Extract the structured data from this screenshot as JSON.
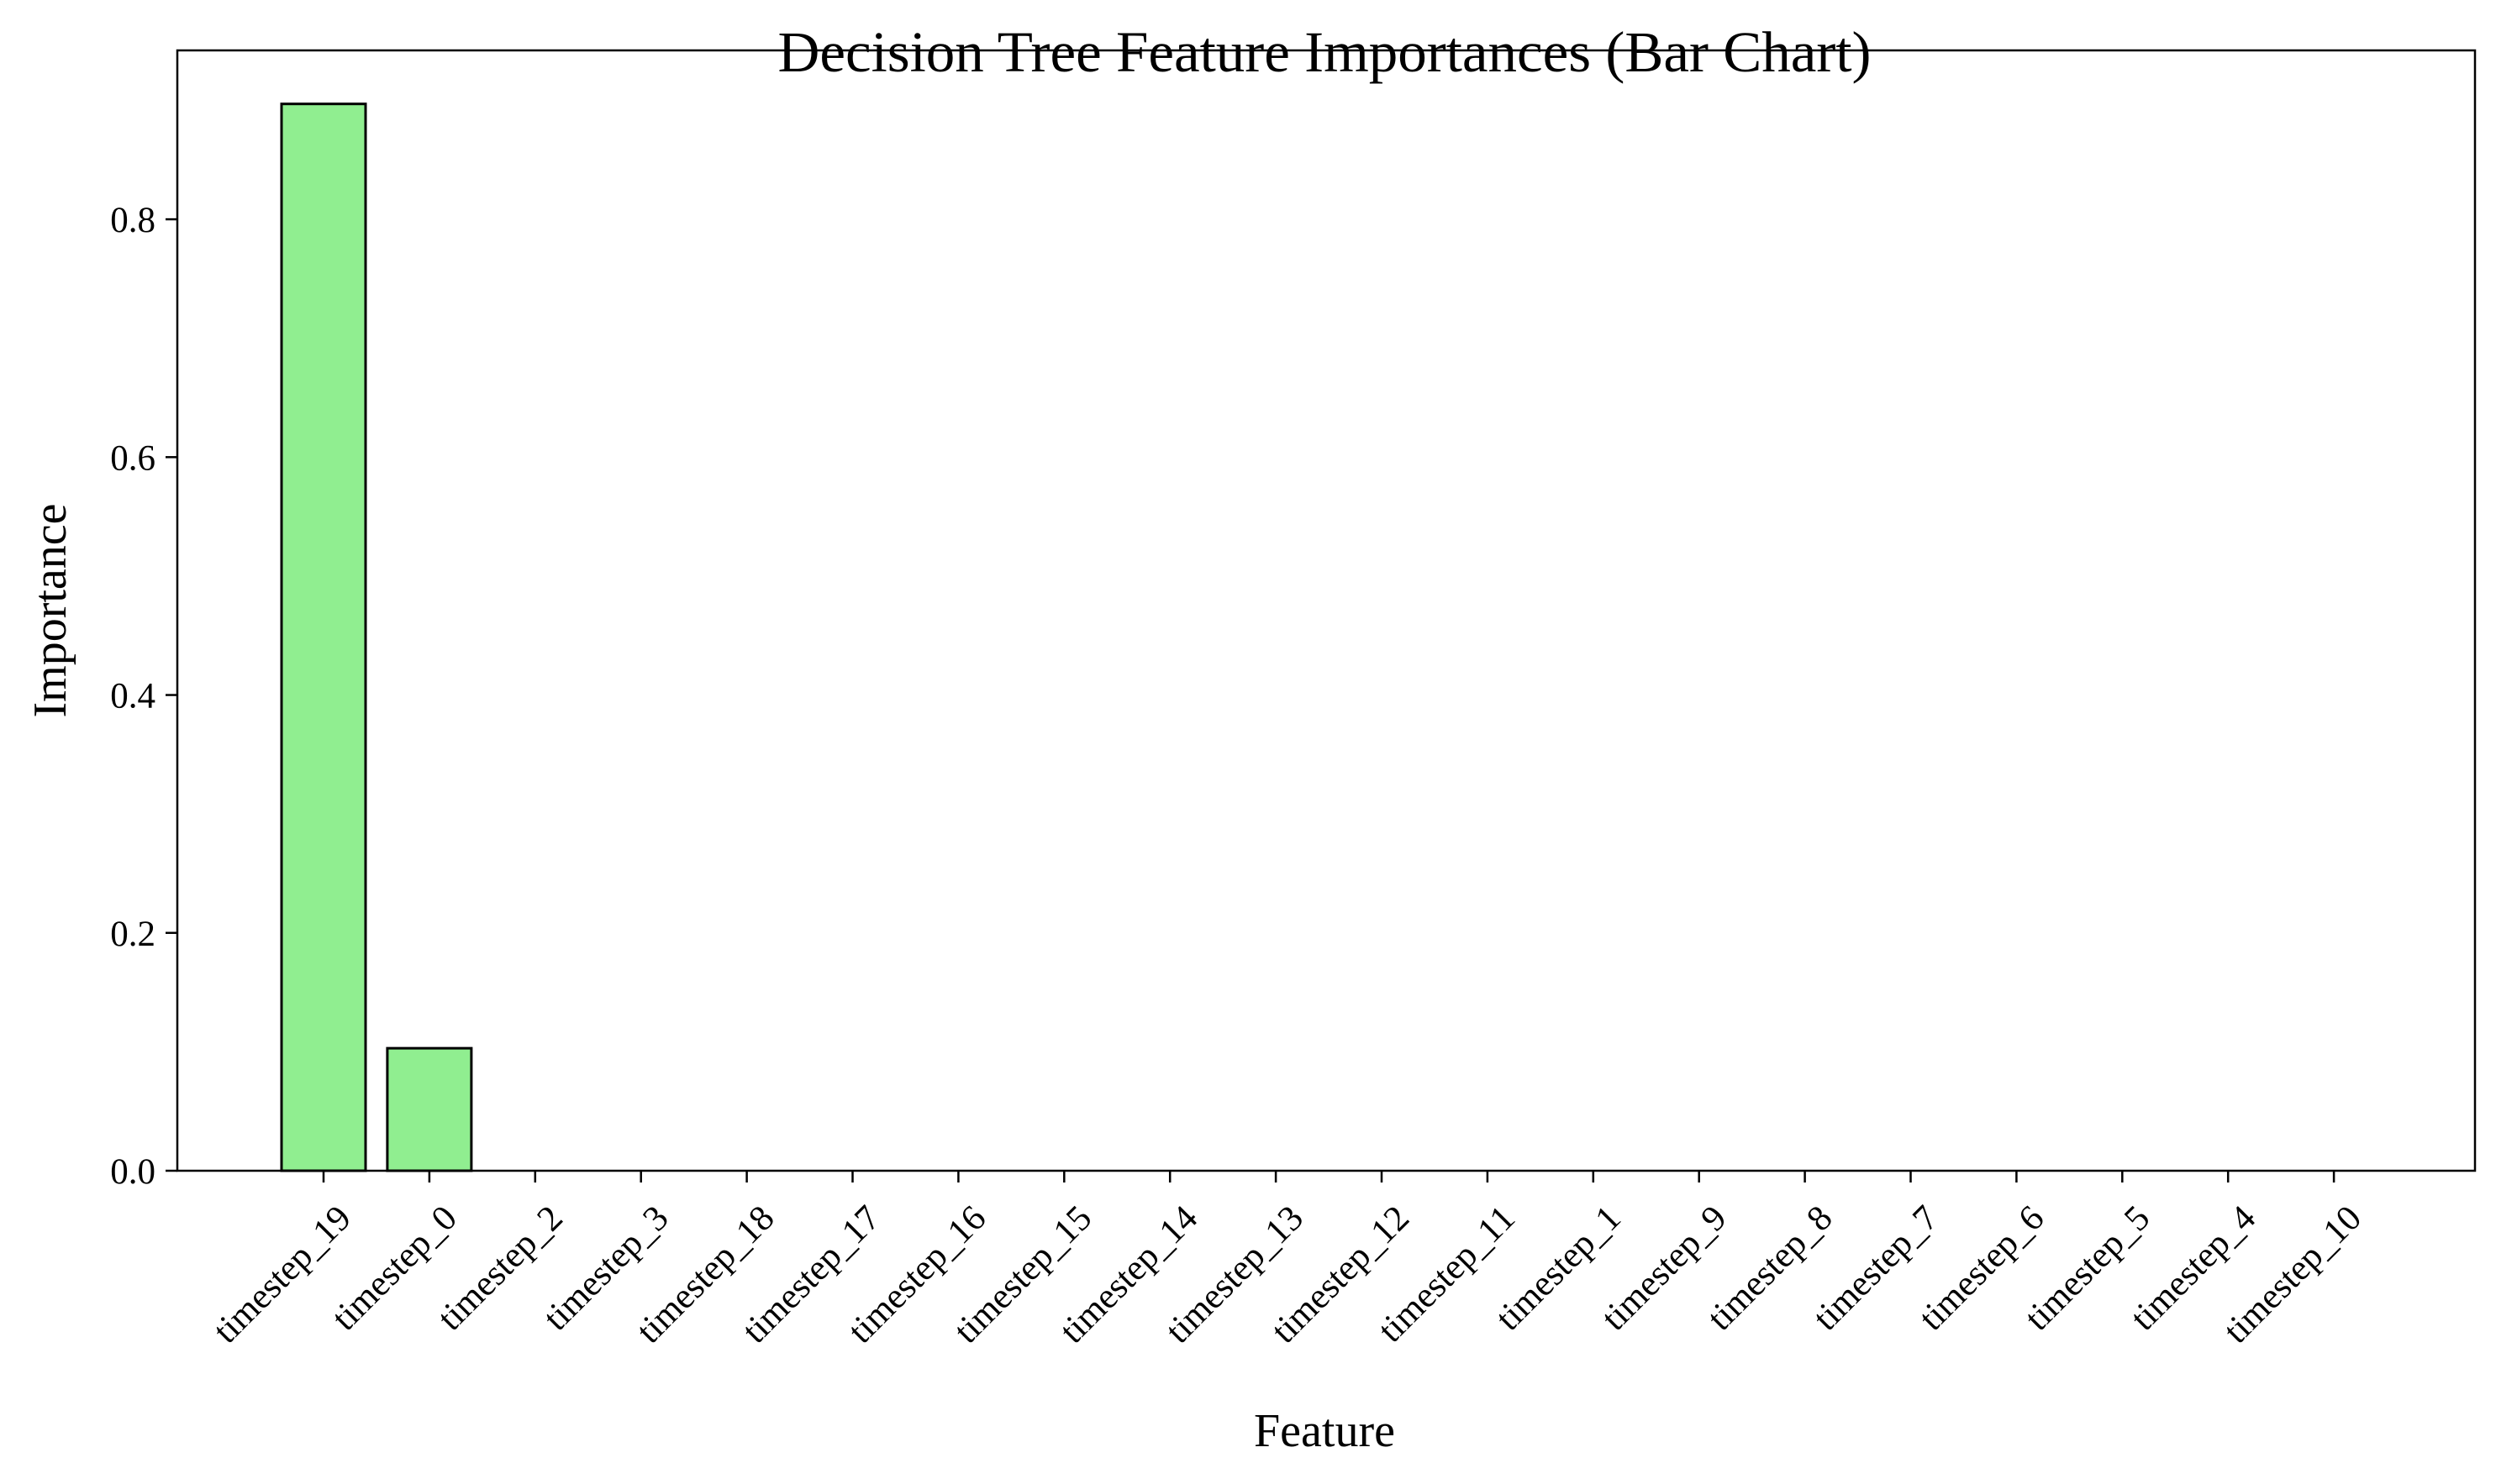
{
  "chart_data": {
    "type": "bar",
    "title": "Decision Tree Feature Importances (Bar Chart)",
    "xlabel": "Feature",
    "ylabel": "Importance",
    "categories": [
      "timestep_19",
      "timestep_0",
      "timestep_2",
      "timestep_3",
      "timestep_18",
      "timestep_17",
      "timestep_16",
      "timestep_15",
      "timestep_14",
      "timestep_13",
      "timestep_12",
      "timestep_11",
      "timestep_1",
      "timestep_9",
      "timestep_8",
      "timestep_7",
      "timestep_6",
      "timestep_5",
      "timestep_4",
      "timestep_10"
    ],
    "values": [
      0.897,
      0.103,
      0,
      0,
      0,
      0,
      0,
      0,
      0,
      0,
      0,
      0,
      0,
      0,
      0,
      0,
      0,
      0,
      0,
      0
    ],
    "ylim": [
      0,
      0.942
    ],
    "yticks": [
      0.0,
      0.2,
      0.4,
      0.6,
      0.8
    ],
    "ytick_labels": [
      "0.0",
      "0.2",
      "0.4",
      "0.6",
      "0.8"
    ],
    "bar_color": "#90ee90",
    "edge_color": "#000000",
    "grid": false,
    "legend": "none"
  }
}
